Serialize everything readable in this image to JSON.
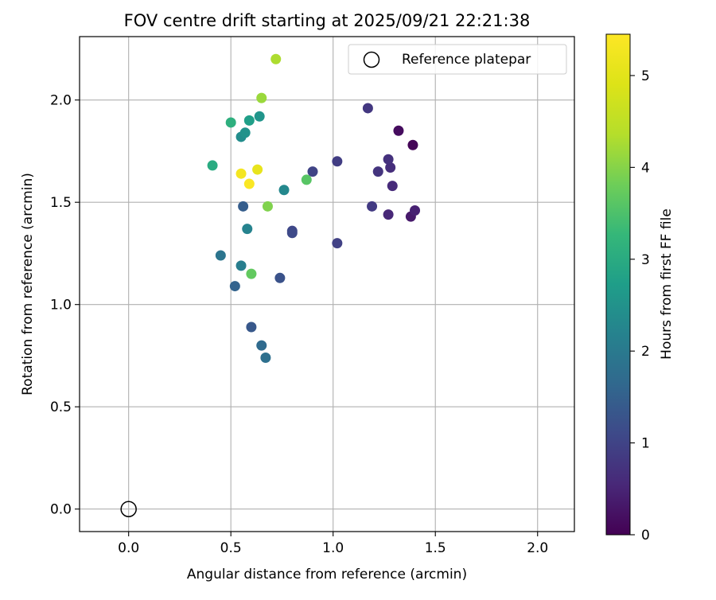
{
  "chart_data": {
    "type": "scatter",
    "title": "FOV centre drift starting at 2025/09/21 22:21:38",
    "xlabel": "Angular distance from reference (arcmin)",
    "ylabel": "Rotation from reference (arcmin)",
    "xlim": [
      -0.24,
      2.18
    ],
    "ylim": [
      -0.11,
      2.31
    ],
    "xticks": [
      0.0,
      0.5,
      1.0,
      1.5,
      2.0
    ],
    "xtick_labels": [
      "0.0",
      "0.5",
      "1.0",
      "1.5",
      "2.0"
    ],
    "yticks": [
      0.0,
      0.5,
      1.0,
      1.5,
      2.0
    ],
    "ytick_labels": [
      "0.0",
      "0.5",
      "1.0",
      "1.5",
      "2.0"
    ],
    "grid": true,
    "legend": {
      "position": "top-right",
      "label": "Reference platepar"
    },
    "reference_point": {
      "x": 0.0,
      "y": 0.0
    },
    "colorbar": {
      "label": "Hours from first FF file",
      "range": [
        0,
        5.45
      ],
      "ticks": [
        0,
        1,
        2,
        3,
        4,
        5
      ],
      "tick_labels": [
        "0",
        "1",
        "2",
        "3",
        "4",
        "5"
      ],
      "colormap": "viridis"
    },
    "points": [
      {
        "x": 1.39,
        "y": 1.78,
        "h": 0.05
      },
      {
        "x": 1.32,
        "y": 1.85,
        "h": 0.15
      },
      {
        "x": 1.38,
        "y": 1.43,
        "h": 0.35
      },
      {
        "x": 1.4,
        "y": 1.46,
        "h": 0.45
      },
      {
        "x": 1.27,
        "y": 1.44,
        "h": 0.55
      },
      {
        "x": 1.29,
        "y": 1.58,
        "h": 0.6
      },
      {
        "x": 1.28,
        "y": 1.67,
        "h": 0.65
      },
      {
        "x": 1.27,
        "y": 1.71,
        "h": 0.7
      },
      {
        "x": 1.22,
        "y": 1.65,
        "h": 0.75
      },
      {
        "x": 1.17,
        "y": 1.96,
        "h": 0.8
      },
      {
        "x": 1.19,
        "y": 1.48,
        "h": 0.85
      },
      {
        "x": 1.02,
        "y": 1.7,
        "h": 0.9
      },
      {
        "x": 1.02,
        "y": 1.3,
        "h": 0.95
      },
      {
        "x": 0.9,
        "y": 1.65,
        "h": 1.0
      },
      {
        "x": 0.8,
        "y": 1.36,
        "h": 1.05
      },
      {
        "x": 0.8,
        "y": 1.35,
        "h": 1.1
      },
      {
        "x": 0.74,
        "y": 1.13,
        "h": 1.25
      },
      {
        "x": 0.6,
        "y": 0.89,
        "h": 1.35
      },
      {
        "x": 0.56,
        "y": 1.48,
        "h": 1.45
      },
      {
        "x": 0.52,
        "y": 1.09,
        "h": 1.55
      },
      {
        "x": 0.65,
        "y": 0.8,
        "h": 1.7
      },
      {
        "x": 0.67,
        "y": 0.74,
        "h": 1.8
      },
      {
        "x": 0.45,
        "y": 1.24,
        "h": 1.9
      },
      {
        "x": 0.55,
        "y": 1.19,
        "h": 2.1
      },
      {
        "x": 0.58,
        "y": 1.37,
        "h": 2.2
      },
      {
        "x": 0.76,
        "y": 1.56,
        "h": 2.3
      },
      {
        "x": 0.55,
        "y": 1.82,
        "h": 2.4
      },
      {
        "x": 0.57,
        "y": 1.84,
        "h": 2.5
      },
      {
        "x": 0.64,
        "y": 1.92,
        "h": 2.55
      },
      {
        "x": 0.59,
        "y": 1.9,
        "h": 2.75
      },
      {
        "x": 0.41,
        "y": 1.68,
        "h": 3.0
      },
      {
        "x": 0.5,
        "y": 1.89,
        "h": 3.1
      },
      {
        "x": 0.87,
        "y": 1.61,
        "h": 3.6
      },
      {
        "x": 0.6,
        "y": 1.15,
        "h": 3.7
      },
      {
        "x": 0.68,
        "y": 1.48,
        "h": 3.95
      },
      {
        "x": 0.65,
        "y": 2.01,
        "h": 4.15
      },
      {
        "x": 0.72,
        "y": 2.2,
        "h": 4.3
      },
      {
        "x": 0.63,
        "y": 1.66,
        "h": 5.1
      },
      {
        "x": 0.55,
        "y": 1.64,
        "h": 5.3
      },
      {
        "x": 0.59,
        "y": 1.59,
        "h": 5.4
      }
    ]
  }
}
